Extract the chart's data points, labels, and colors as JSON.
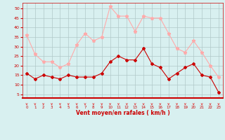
{
  "x": [
    0,
    1,
    2,
    3,
    4,
    5,
    6,
    7,
    8,
    9,
    10,
    11,
    12,
    13,
    14,
    15,
    16,
    17,
    18,
    19,
    20,
    21,
    22,
    23
  ],
  "wind_avg": [
    16,
    13,
    15,
    14,
    13,
    15,
    14,
    14,
    14,
    16,
    22,
    25,
    23,
    23,
    29,
    21,
    19,
    13,
    16,
    19,
    21,
    15,
    14,
    6
  ],
  "wind_gust": [
    36,
    26,
    22,
    22,
    19,
    21,
    31,
    37,
    33,
    35,
    51,
    46,
    46,
    38,
    46,
    45,
    45,
    37,
    29,
    27,
    33,
    27,
    20,
    14
  ],
  "arrow_color": "#e05050",
  "avg_color": "#cc0000",
  "gust_color": "#ffaaaa",
  "bg_color": "#d8f0f0",
  "grid_color": "#b0c8c8",
  "xlabel": "Vent moyen/en rafales ( km/h )",
  "yticks": [
    5,
    10,
    15,
    20,
    25,
    30,
    35,
    40,
    45,
    50
  ],
  "ylim": [
    3,
    53
  ],
  "xlim": [
    -0.5,
    23.5
  ]
}
